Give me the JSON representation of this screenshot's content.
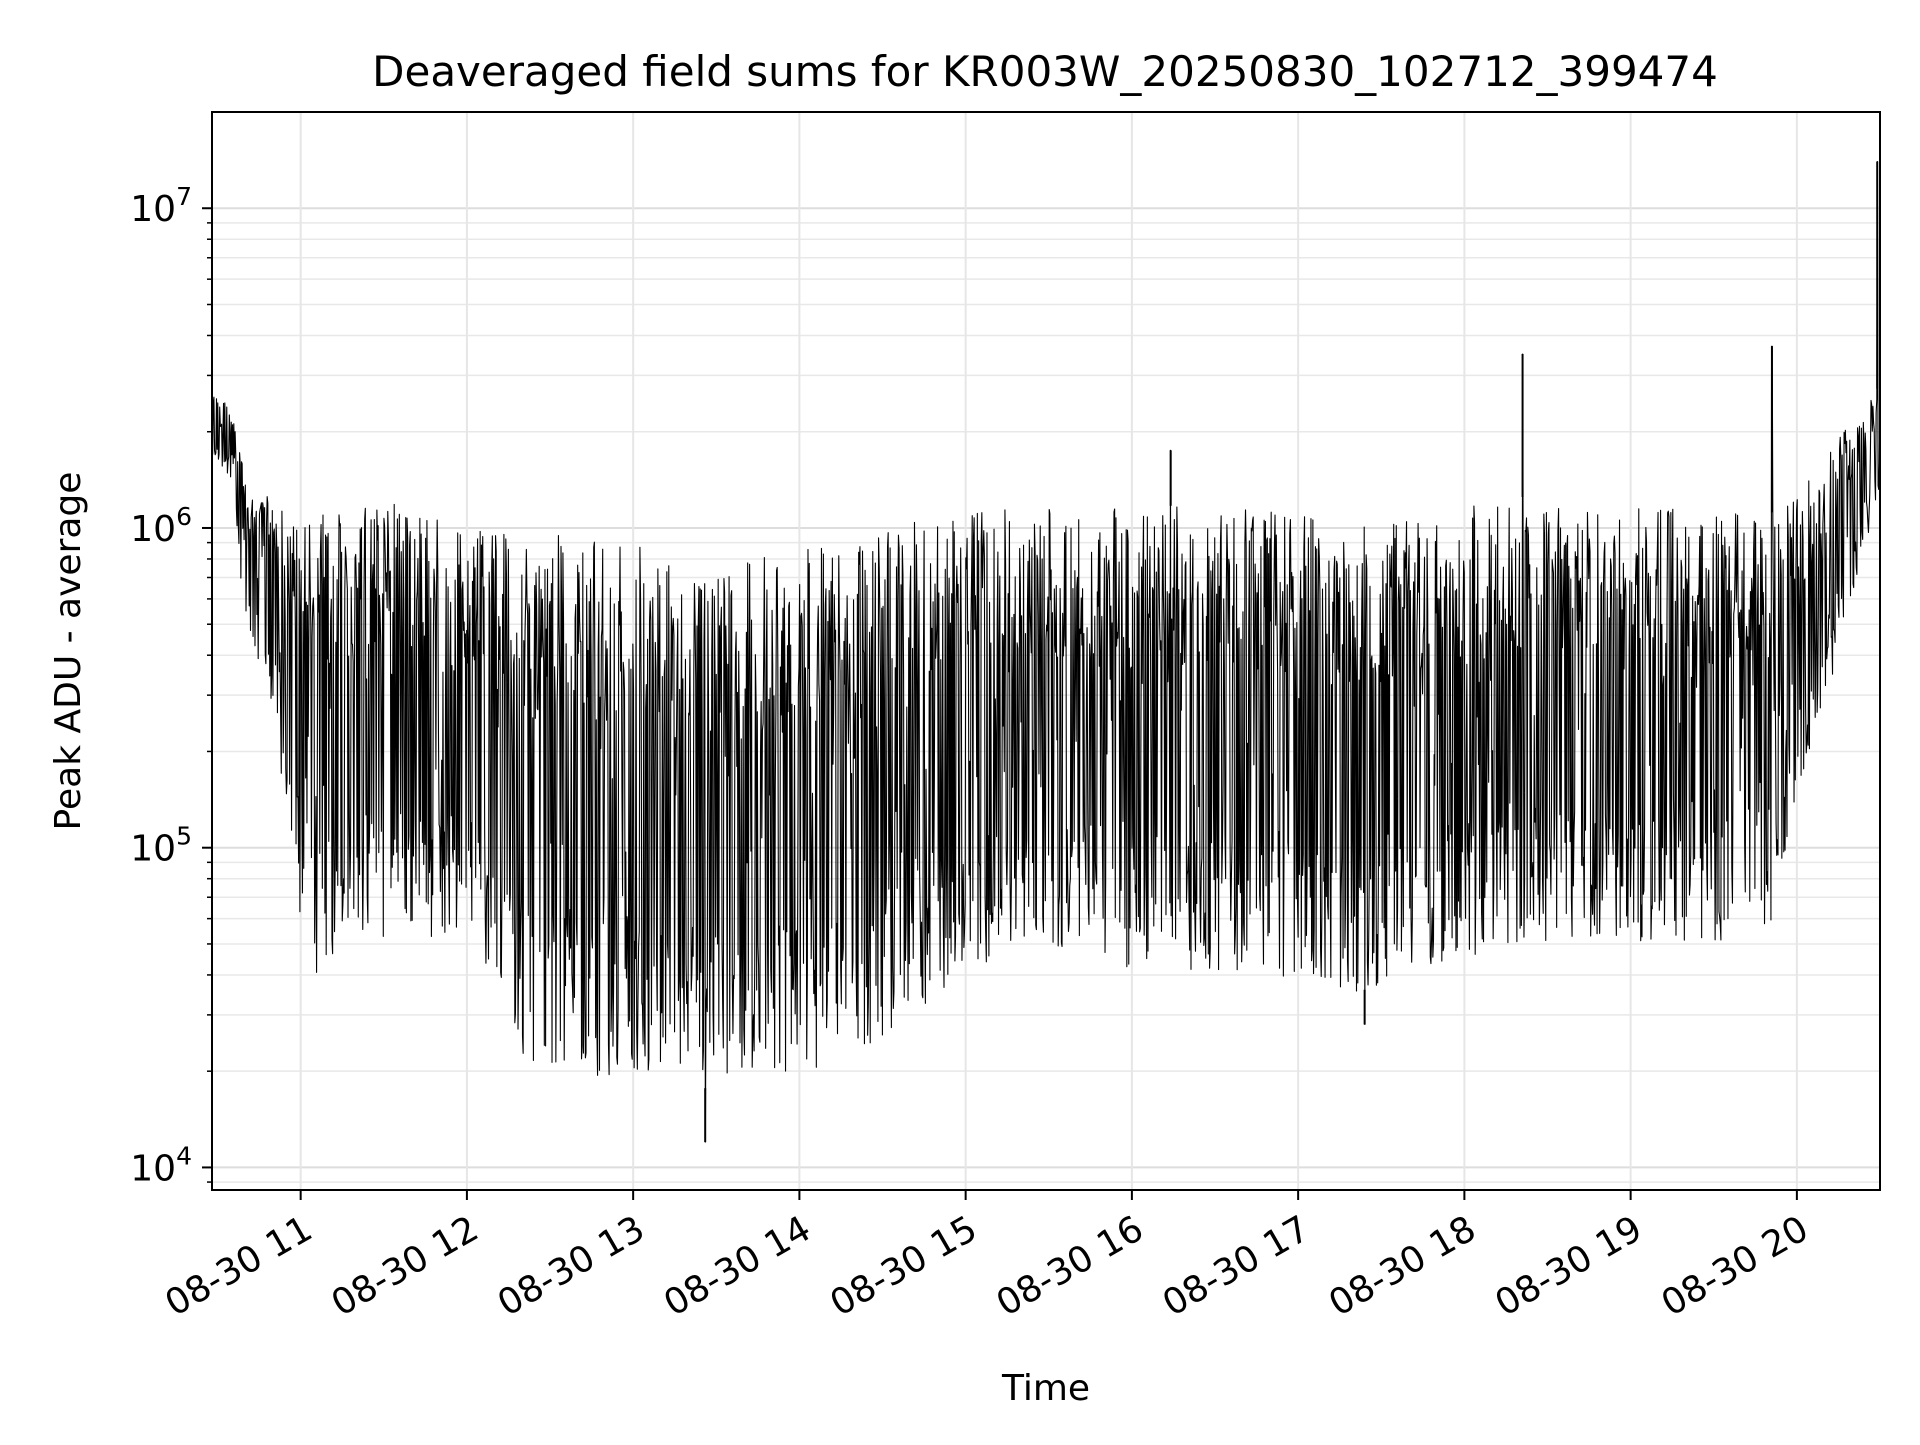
{
  "chart_data": {
    "type": "line",
    "title": "Deaveraged field sums for KR003W_20250830_102712_399474",
    "xlabel": "Time",
    "ylabel": "Peak ADU - average",
    "y_scale": "log",
    "ylim": [
      8500,
      20000000
    ],
    "xlim": [
      "2025-08-30 10:28",
      "2025-08-30 20:30"
    ],
    "grid": true,
    "legend": false,
    "line_color": "#000000",
    "x_ticks": [
      "08-30 11",
      "08-30 12",
      "08-30 13",
      "08-30 14",
      "08-30 15",
      "08-30 16",
      "08-30 17",
      "08-30 18",
      "08-30 19",
      "08-30 20"
    ],
    "y_ticks": [
      {
        "value": 10000,
        "base": "10",
        "exp": "4"
      },
      {
        "value": 100000,
        "base": "10",
        "exp": "5"
      },
      {
        "value": 1000000,
        "base": "10",
        "exp": "6"
      },
      {
        "value": 10000000,
        "base": "10",
        "exp": "7"
      }
    ],
    "series": [
      {
        "envelope": {
          "time": [
            "2025-08-30 10:28",
            "2025-08-30 10:35",
            "2025-08-30 10:40",
            "2025-08-30 10:50",
            "2025-08-30 11:00",
            "2025-08-30 11:05",
            "2025-08-30 11:20",
            "2025-08-30 11:40",
            "2025-08-30 12:00",
            "2025-08-30 12:20",
            "2025-08-30 12:40",
            "2025-08-30 13:00",
            "2025-08-30 13:20",
            "2025-08-30 13:40",
            "2025-08-30 14:00",
            "2025-08-30 14:20",
            "2025-08-30 14:40",
            "2025-08-30 15:00",
            "2025-08-30 15:30",
            "2025-08-30 16:00",
            "2025-08-30 16:30",
            "2025-08-30 17:00",
            "2025-08-30 17:20",
            "2025-08-30 17:40",
            "2025-08-30 18:00",
            "2025-08-30 18:20",
            "2025-08-30 18:40",
            "2025-08-30 19:00",
            "2025-08-30 19:20",
            "2025-08-30 19:40",
            "2025-08-30 19:50",
            "2025-08-30 20:00",
            "2025-08-30 20:15",
            "2025-08-30 20:30"
          ],
          "low": [
            1500000,
            1400000,
            500000,
            250000,
            60000,
            35000,
            55000,
            50000,
            55000,
            22000,
            19000,
            19000,
            18000,
            17000,
            19000,
            22000,
            30000,
            40000,
            48000,
            42000,
            40000,
            38000,
            35000,
            40000,
            45000,
            50000,
            52000,
            50000,
            50000,
            52000,
            55000,
            150000,
            400000,
            1300000
          ],
          "high": [
            2600000,
            2400000,
            1500000,
            1200000,
            1000000,
            1200000,
            1200000,
            1200000,
            1000000,
            950000,
            950000,
            900000,
            850000,
            850000,
            850000,
            900000,
            1100000,
            1200000,
            1150000,
            1150000,
            1200000,
            1100000,
            1000000,
            1050000,
            1200000,
            1250000,
            1250000,
            1200000,
            1150000,
            1150000,
            1100000,
            1300000,
            1900000,
            2800000
          ]
        },
        "spikes": [
          {
            "time": "2025-08-30 13:26",
            "value": 12000
          },
          {
            "time": "2025-08-30 16:14",
            "value": 1750000
          },
          {
            "time": "2025-08-30 17:24",
            "value": 28000
          },
          {
            "time": "2025-08-30 18:21",
            "value": 3500000
          },
          {
            "time": "2025-08-30 19:51",
            "value": 3700000
          },
          {
            "time": "2025-08-30 20:29",
            "value": 14000000
          }
        ]
      }
    ]
  }
}
